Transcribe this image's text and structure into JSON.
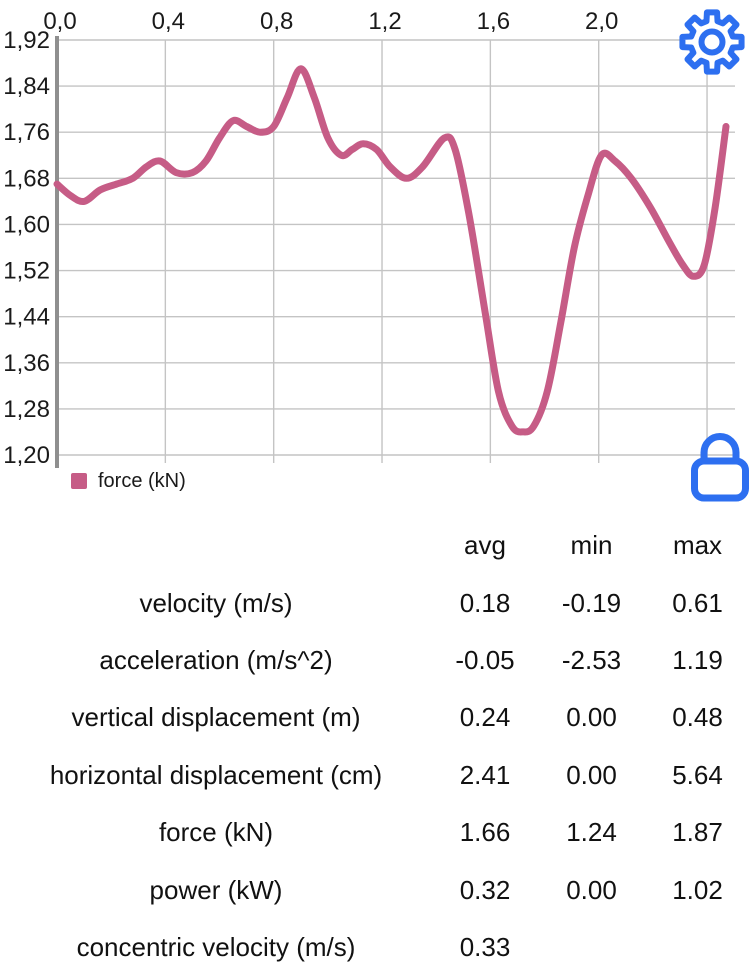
{
  "chart": {
    "legend_label": "force (kN)",
    "colors": {
      "line": "#c65c86",
      "grid": "#c4c4c4",
      "axis": "#8f8f8f",
      "tick_text": "#1a1a1a",
      "icon_blue": "#2d6ff0"
    }
  },
  "chart_data": {
    "type": "line",
    "title": "",
    "xlabel": "",
    "ylabel": "",
    "legend_position": "bottom-left",
    "grid": true,
    "decimal_separator": ",",
    "xlim": [
      0,
      2.47
    ],
    "ylim": [
      1.2,
      1.92
    ],
    "x_ticks": {
      "values": [
        0,
        0.4,
        0.8,
        1.2,
        1.6,
        2.0
      ],
      "labels": [
        "0,0",
        "0,4",
        "0,8",
        "1,2",
        "1,6",
        "2,0"
      ]
    },
    "x_grid_values": [
      0,
      0.4,
      0.8,
      1.2,
      1.6,
      2.0,
      2.4
    ],
    "y_ticks": {
      "values": [
        1.92,
        1.84,
        1.76,
        1.68,
        1.6,
        1.52,
        1.44,
        1.36,
        1.28,
        1.2
      ],
      "labels": [
        "1,92",
        "1,84",
        "1,76",
        "1,68",
        "1,60",
        "1,52",
        "1,44",
        "1,36",
        "1,28",
        "1,20"
      ]
    },
    "series": [
      {
        "name": "force (kN)",
        "x": [
          0.0,
          0.05,
          0.1,
          0.16,
          0.22,
          0.28,
          0.33,
          0.38,
          0.44,
          0.5,
          0.55,
          0.6,
          0.65,
          0.7,
          0.75,
          0.8,
          0.85,
          0.9,
          0.95,
          1.0,
          1.05,
          1.09,
          1.13,
          1.18,
          1.23,
          1.29,
          1.35,
          1.43,
          1.47,
          1.52,
          1.58,
          1.63,
          1.68,
          1.72,
          1.76,
          1.81,
          1.86,
          1.91,
          1.96,
          2.01,
          2.06,
          2.12,
          2.19,
          2.26,
          2.31,
          2.35,
          2.39,
          2.43,
          2.47
        ],
        "y": [
          1.67,
          1.65,
          1.64,
          1.66,
          1.67,
          1.68,
          1.7,
          1.71,
          1.69,
          1.69,
          1.71,
          1.75,
          1.78,
          1.77,
          1.76,
          1.77,
          1.82,
          1.87,
          1.82,
          1.75,
          1.72,
          1.73,
          1.74,
          1.73,
          1.7,
          1.68,
          1.7,
          1.75,
          1.73,
          1.62,
          1.45,
          1.31,
          1.25,
          1.24,
          1.25,
          1.31,
          1.43,
          1.56,
          1.65,
          1.72,
          1.71,
          1.68,
          1.63,
          1.57,
          1.53,
          1.51,
          1.53,
          1.63,
          1.77
        ]
      }
    ]
  },
  "icons": {
    "settings": "gear-icon",
    "lock": "lock-icon"
  },
  "table": {
    "headers": [
      "avg",
      "min",
      "max"
    ],
    "rows": [
      {
        "label": "velocity (m/s)",
        "avg": "0.18",
        "min": "-0.19",
        "max": "0.61"
      },
      {
        "label": "acceleration (m/s^2)",
        "avg": "-0.05",
        "min": "-2.53",
        "max": "1.19"
      },
      {
        "label": "vertical displacement (m)",
        "avg": "0.24",
        "min": "0.00",
        "max": "0.48"
      },
      {
        "label": "horizontal displacement (cm)",
        "avg": "2.41",
        "min": "0.00",
        "max": "5.64"
      },
      {
        "label": "force (kN)",
        "avg": "1.66",
        "min": "1.24",
        "max": "1.87"
      },
      {
        "label": "power (kW)",
        "avg": "0.32",
        "min": "0.00",
        "max": "1.02"
      },
      {
        "label": "concentric velocity (m/s)",
        "avg": "0.33",
        "min": "",
        "max": ""
      }
    ]
  }
}
